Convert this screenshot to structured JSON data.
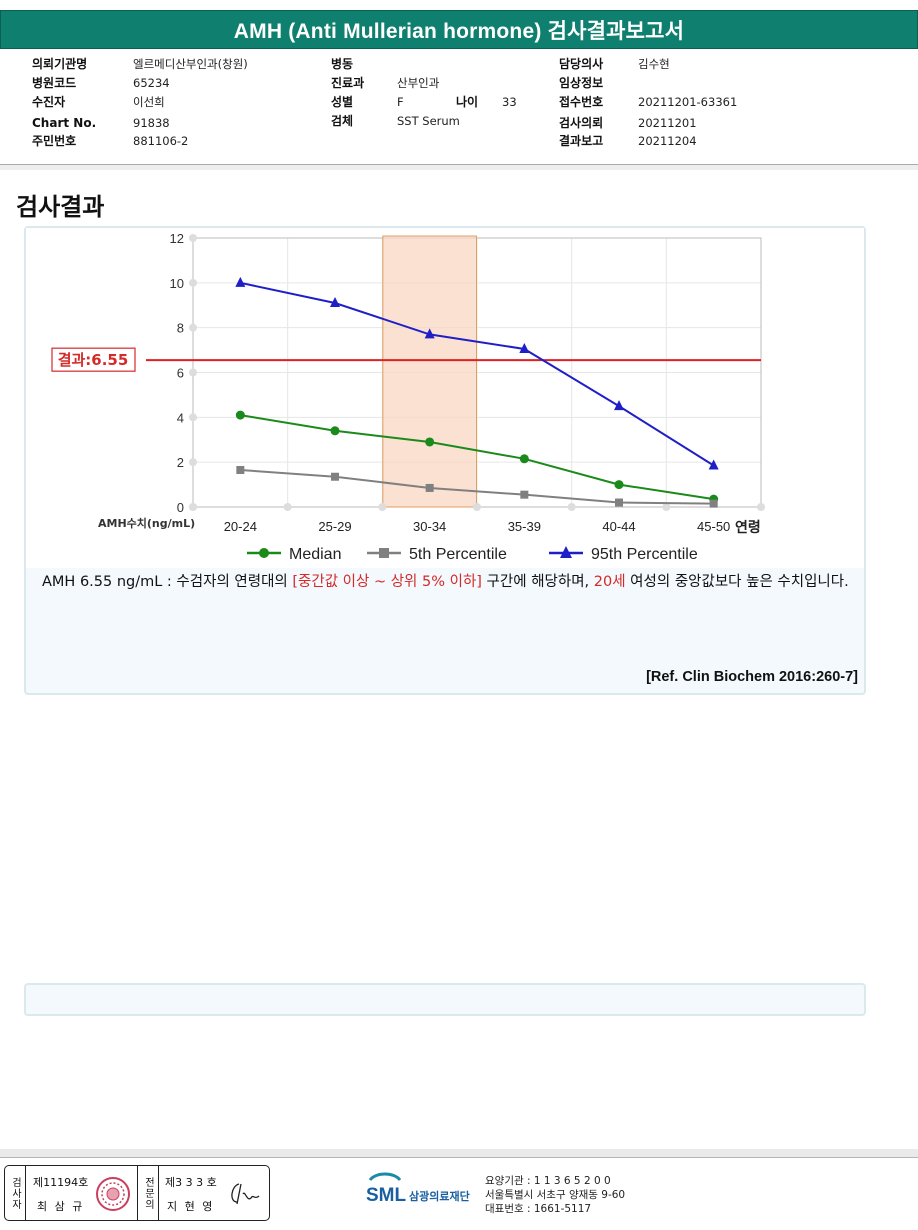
{
  "report": {
    "title": "AMH (Anti Mullerian hormone) 검사결과보고서"
  },
  "info": {
    "col1": [
      {
        "label": "의뢰기관명",
        "value": "엘르메디산부인과(창원)"
      },
      {
        "label": "병원코드",
        "value": "65234"
      },
      {
        "label": "수진자",
        "value": "이선희"
      },
      {
        "label": "Chart No.",
        "value": "91838"
      },
      {
        "label": "주민번호",
        "value": "881106-2"
      }
    ],
    "col2": [
      {
        "label": "병동",
        "value": ""
      },
      {
        "label": "진료과",
        "value": "산부인과"
      },
      {
        "label": "성별",
        "value": "F"
      },
      {
        "label": "검체",
        "value": "SST Serum"
      }
    ],
    "age_label": "나이",
    "age_value": "33",
    "col3": [
      {
        "label": "담당의사",
        "value": "김수현"
      },
      {
        "label": "임상정보",
        "value": ""
      },
      {
        "label": "접수번호",
        "value": "20211201-63361"
      },
      {
        "label": "검사의뢰",
        "value": "20211201"
      },
      {
        "label": "결과보고",
        "value": "20211204"
      }
    ]
  },
  "section": {
    "title": "검사결과"
  },
  "chart_data": {
    "type": "line",
    "categories": [
      "20-24",
      "25-29",
      "30-34",
      "35-39",
      "40-44",
      "45-50"
    ],
    "ylabel": "AMH수치(ng/mL)",
    "xlabel": "연령",
    "ylim": [
      0,
      12
    ],
    "yticks": [
      0,
      2,
      4,
      6,
      8,
      10,
      12
    ],
    "highlight_category": "30-34",
    "result_line": {
      "label": "결과:6.55",
      "value": 6.55,
      "color": "#e02020"
    },
    "series": [
      {
        "name": "Median",
        "color": "#1a8a1a",
        "marker": "circle",
        "values": [
          4.1,
          3.4,
          2.9,
          2.15,
          1.0,
          0.35
        ]
      },
      {
        "name": "5th Percentile",
        "color": "#808080",
        "marker": "square",
        "values": [
          1.65,
          1.35,
          0.85,
          0.55,
          0.2,
          0.15
        ]
      },
      {
        "name": "95th Percentile",
        "color": "#1f1fc8",
        "marker": "triangle",
        "values": [
          10.0,
          9.1,
          7.7,
          7.05,
          4.5,
          1.85
        ]
      }
    ],
    "legend_position": "bottom"
  },
  "interpretation": {
    "prefix": "AMH  6.55 ng/mL : 수검자의 연령대의 ",
    "range_text": "[중간값 이상 ~ 상위 5% 이하]",
    "middle": "  구간에 해당하며, ",
    "age_text": "20세",
    "suffix": " 여성의 중앙값보다 높은 수치입니다.",
    "reference": "[Ref. Clin Biochem 2016:260-7]"
  },
  "footer": {
    "inspector_label": "검사자",
    "inspector_no": "제11194호",
    "inspector_name": "최 삼 규",
    "approver_label": "전문의",
    "approver_no": "제3 3 3 호",
    "approver_name": "지 현 영",
    "org_abbr": "SML",
    "org_name": "삼광의료재단",
    "org_lines": [
      "요양기관 : 1 1 3 6 5 2 0 0",
      "서울특별시 서초구 양재동 9-60",
      "대표번호 : 1661-5117"
    ]
  }
}
